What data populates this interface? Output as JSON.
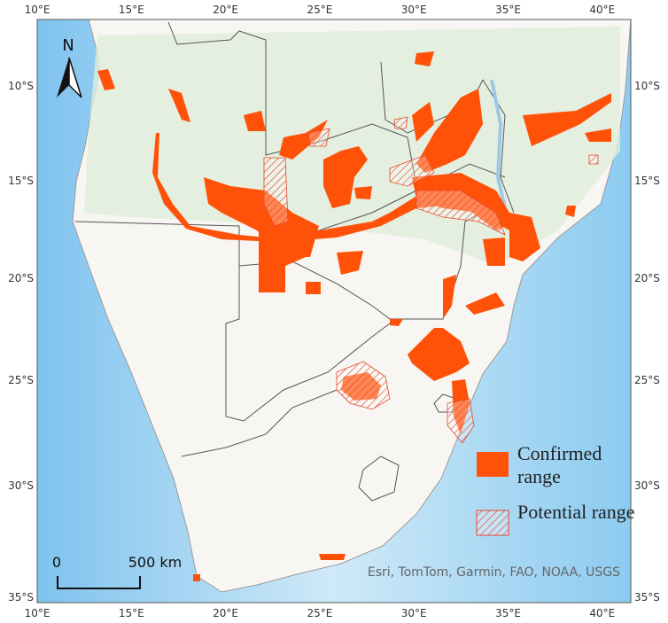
{
  "map": {
    "longitude_labels": [
      "10°E",
      "15°E",
      "20°E",
      "25°E",
      "30°E",
      "35°E",
      "40°E"
    ],
    "latitude_labels": [
      "10°S",
      "15°S",
      "20°S",
      "25°S",
      "30°S",
      "35°S"
    ],
    "north_arrow": "N",
    "scale_bar": {
      "start": "0",
      "end": "500 km"
    },
    "legend": {
      "confirmed": "Confirmed range",
      "potential": "Potential range"
    },
    "attribution": "Esri, TomTom, Garmin, FAO, NOAA, USGS"
  }
}
